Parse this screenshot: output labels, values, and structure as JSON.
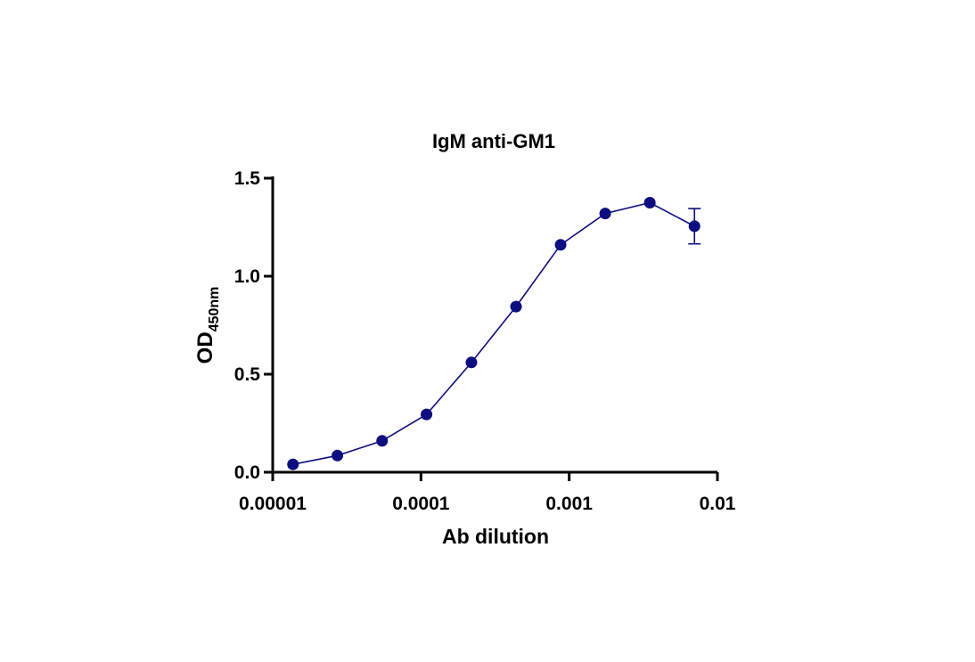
{
  "chart_data": {
    "type": "line",
    "title": "IgM anti-GM1",
    "xlabel": "Ab dilution",
    "ylabel": "OD",
    "ylabel_sub": "450nm",
    "x_scale": "log",
    "xlim": [
      1e-05,
      0.01
    ],
    "ylim": [
      0,
      1.5
    ],
    "x_ticks": [
      1e-05,
      0.0001,
      0.001,
      0.01
    ],
    "x_tick_labels": [
      "0.00001",
      "0.0001",
      "0.001",
      "0.01"
    ],
    "y_ticks": [
      0,
      0.5,
      1,
      1.5
    ],
    "y_tick_labels": [
      "0.0",
      "0.5",
      "1.0",
      "1.5"
    ],
    "grid": false,
    "series": [
      {
        "color": "#0d0d80",
        "points": [
          {
            "x": 1.37e-05,
            "y": 0.04
          },
          {
            "x": 2.73e-05,
            "y": 0.085
          },
          {
            "x": 5.47e-05,
            "y": 0.16
          },
          {
            "x": 0.000109,
            "y": 0.295
          },
          {
            "x": 0.000219,
            "y": 0.56
          },
          {
            "x": 0.000438,
            "y": 0.845
          },
          {
            "x": 0.000875,
            "y": 1.16
          },
          {
            "x": 0.00175,
            "y": 1.32
          },
          {
            "x": 0.0035,
            "y": 1.375
          },
          {
            "x": 0.007,
            "y": 1.255,
            "err": 0.09
          }
        ]
      }
    ]
  }
}
